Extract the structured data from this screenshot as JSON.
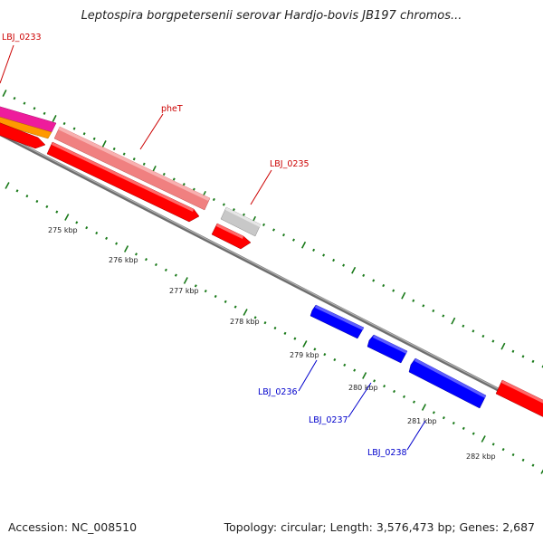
{
  "title": "Leptospira borgpetersenii serovar Hardjo-bovis JB197 chromos...",
  "footer": {
    "accession": "Accession: NC_008510",
    "summary": "Topology: circular; Length: 3,576,473 bp; Genes: 2,687"
  },
  "colors": {
    "forward_cds": "#ff0000",
    "reverse_cds": "#0000ff",
    "pink_rna": "#ee1c9c",
    "orange_feature": "#ff9900",
    "pseudo_light": "#f08080",
    "unknown_gray": "#c8c8c8",
    "backbone": "#808080",
    "ticks": "#1a7a1a",
    "fwd_label": "#cc0000",
    "rev_label": "#0000cc"
  },
  "ticks": [
    {
      "label": "275 kbp"
    },
    {
      "label": "276 kbp"
    },
    {
      "label": "277 kbp"
    },
    {
      "label": "278 kbp"
    },
    {
      "label": "279 kbp"
    },
    {
      "label": "280 kbp"
    },
    {
      "label": "281 kbp"
    },
    {
      "label": "282 kbp"
    }
  ],
  "gene_labels": [
    {
      "text": "LBJ_0233",
      "strand": "forward"
    },
    {
      "text": "pheT",
      "strand": "forward"
    },
    {
      "text": "LBJ_0235",
      "strand": "forward"
    },
    {
      "text": "LBJ_0236",
      "strand": "reverse"
    },
    {
      "text": "LBJ_0237",
      "strand": "reverse"
    },
    {
      "text": "LBJ_0238",
      "strand": "reverse"
    }
  ]
}
